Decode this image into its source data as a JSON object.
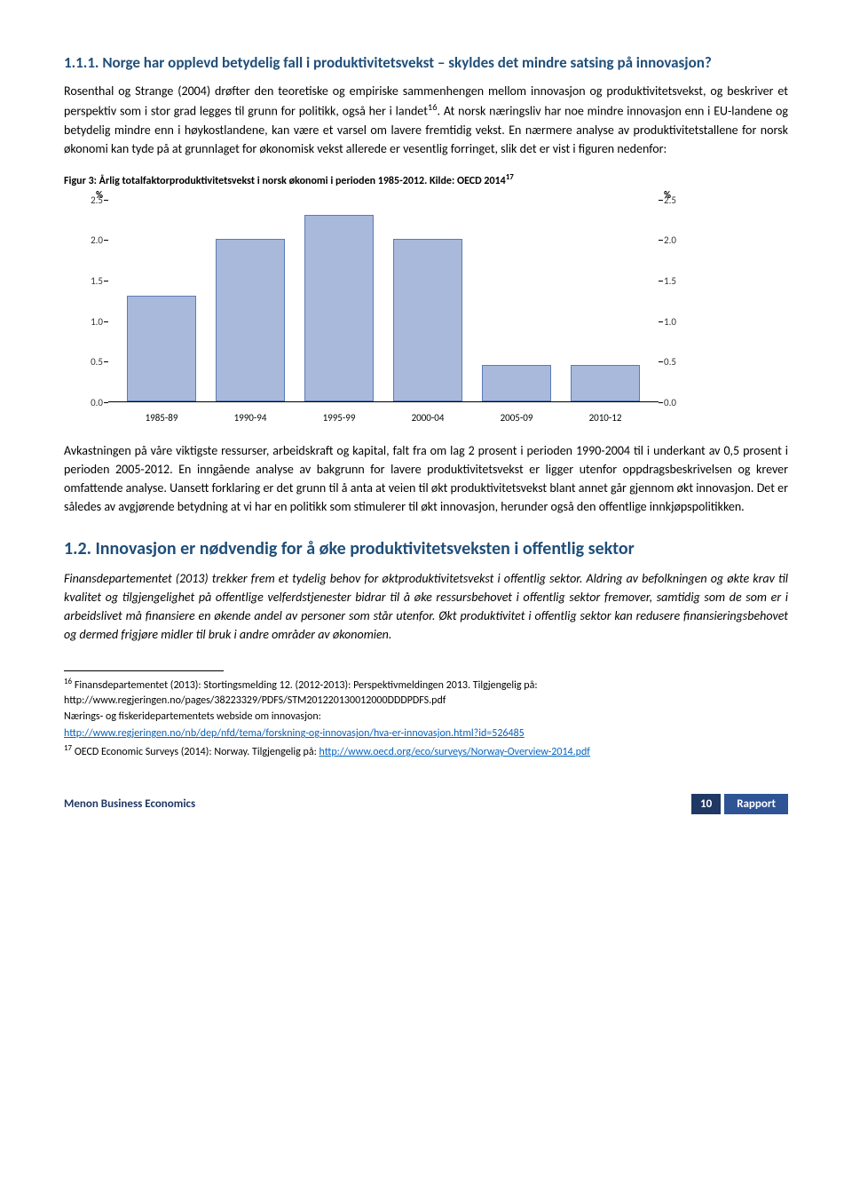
{
  "section1": {
    "heading": "1.1.1.  Norge har opplevd betydelig fall i produktivitetsvekst – skyldes det mindre satsing på innovasjon?",
    "para1_a": "Rosenthal og Strange (2004) drøfter den teoretiske og empiriske sammenhengen mellom innovasjon og produktivitetsvekst, og beskriver et perspektiv som i stor grad legges til grunn for politikk, også her i landet",
    "para1_sup": "16",
    "para1_b": ". At norsk næringsliv har noe mindre innovasjon enn i EU-landene og betydelig mindre enn i høykostlandene, kan være et varsel om lavere fremtidig vekst. En nærmere analyse av produktivitetstallene for norsk økonomi kan tyde på at grunnlaget for økonomisk vekst allerede er vesentlig forringet, slik det er vist i figuren nedenfor:"
  },
  "figure": {
    "caption_a": "Figur 3: Årlig totalfaktorproduktivitetsvekst i norsk økonomi i perioden 1985-2012. Kilde: OECD 2014",
    "caption_sup": "17",
    "chart": {
      "y_unit": "%",
      "y_max": 2.5,
      "y_ticks": [
        "0.0",
        "0.5",
        "1.0",
        "1.5",
        "2.0",
        "2.5"
      ],
      "categories": [
        "1985-89",
        "1990-94",
        "1995-99",
        "2000-04",
        "2005-09",
        "2010-12"
      ],
      "values": [
        1.3,
        2.0,
        2.3,
        2.0,
        0.45,
        0.45
      ],
      "bar_color": "#a8b9dc",
      "bar_border": "#5b7bb5"
    }
  },
  "section1_cont": {
    "para2": "Avkastningen på våre viktigste ressurser, arbeidskraft og kapital, falt fra om lag 2 prosent i perioden 1990-2004 til i underkant av 0,5 prosent i perioden 2005-2012. En inngående analyse av bakgrunn for lavere produktivitetsvekst er ligger utenfor oppdragsbeskrivelsen og krever omfattende analyse. Uansett forklaring er det grunn til å anta at veien til økt produktivitetsvekst blant annet går gjennom økt innovasjon. Det er således av avgjørende betydning at vi har en politikk som stimulerer til økt innovasjon, herunder også den offentlige innkjøpspolitikken."
  },
  "section2": {
    "heading": "1.2.    Innovasjon er nødvendig for å øke produktivitetsveksten i offentlig sektor",
    "para1": "Finansdepartementet (2013) trekker frem et tydelig behov for øktproduktivitetsvekst i offentlig sektor. Aldring av befolkningen og økte krav til kvalitet og tilgjengelighet på offentlige velferdstjenester bidrar til å øke ressursbehovet i offentlig sektor fremover, samtidig som de som er i arbeidslivet må finansiere en økende andel av personer som står utenfor. Økt produktivitet i offentlig sektor kan redusere finansieringsbehovet og dermed frigjøre midler til bruk i andre områder av økonomien."
  },
  "footnotes": {
    "fn16_a": "16",
    "fn16_b": " Finansdepartementet (2013): Stortingsmelding 12. (2012-2013): Perspektivmeldingen 2013.  Tilgjengelig på: http://www.regjeringen.no/pages/38223329/PDFS/STM201220130012000DDDPDFS.pdf",
    "fn16_c": "Nærings- og fiskeridepartementets webside om innovasjon:",
    "fn16_link": "http://www.regjeringen.no/nb/dep/nfd/tema/forskning-og-innovasjon/hva-er-innovasjon.html?id=526485",
    "fn17_a": "17",
    "fn17_b": " OECD Economic Surveys (2014): Norway. Tilgjengelig på: ",
    "fn17_link": "http://www.oecd.org/eco/surveys/Norway-Overview-2014.pdf"
  },
  "footer": {
    "left": "Menon Business Economics",
    "page": "10",
    "label": "Rapport"
  }
}
